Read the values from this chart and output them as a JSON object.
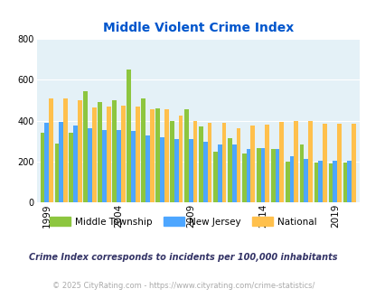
{
  "title": "Middle Violent Crime Index",
  "years": [
    1999,
    2000,
    2001,
    2002,
    2003,
    2004,
    2005,
    2006,
    2007,
    2008,
    2009,
    2010,
    2011,
    2012,
    2013,
    2014,
    2015,
    2016,
    2017,
    2018,
    2019,
    2020
  ],
  "middle_township": [
    340,
    290,
    340,
    545,
    490,
    500,
    650,
    510,
    460,
    400,
    455,
    370,
    250,
    315,
    240,
    265,
    260,
    200,
    285,
    195,
    190,
    195
  ],
  "new_jersey": [
    390,
    395,
    375,
    365,
    355,
    355,
    350,
    330,
    320,
    310,
    310,
    295,
    285,
    285,
    260,
    265,
    260,
    225,
    215,
    205,
    205,
    205
  ],
  "national": [
    510,
    510,
    500,
    465,
    470,
    475,
    470,
    455,
    455,
    425,
    400,
    390,
    390,
    365,
    375,
    380,
    395,
    400,
    400,
    385,
    385,
    385
  ],
  "ylim": [
    0,
    800
  ],
  "yticks": [
    0,
    200,
    400,
    600,
    800
  ],
  "xtick_years": [
    1999,
    2004,
    2009,
    2014,
    2019
  ],
  "color_middle": "#8dc63f",
  "color_nj": "#4da6ff",
  "color_national": "#ffc04c",
  "bg_color": "#e4f1f7",
  "title_color": "#0055cc",
  "legend_label_middle": "Middle Township",
  "legend_label_nj": "New Jersey",
  "legend_label_national": "National",
  "footnote1": "Crime Index corresponds to incidents per 100,000 inhabitants",
  "footnote2": "© 2025 CityRating.com - https://www.cityrating.com/crime-statistics/",
  "footnote1_color": "#333366",
  "footnote2_color": "#aaaaaa"
}
